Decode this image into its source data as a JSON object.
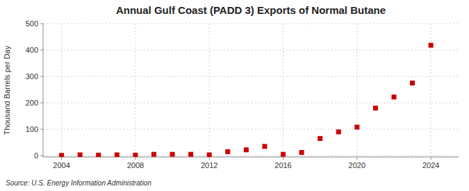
{
  "chart_data": {
    "type": "scatter",
    "title": "Annual Gulf Coast (PADD 3) Exports of Normal Butane",
    "ylabel": "Thousand Barrels per Day",
    "source": "Source: U.S. Energy Information Administration",
    "x": [
      2004,
      2005,
      2006,
      2007,
      2008,
      2009,
      2010,
      2011,
      2012,
      2013,
      2014,
      2015,
      2016,
      2017,
      2018,
      2019,
      2020,
      2021,
      2022,
      2023,
      2024
    ],
    "values": [
      1,
      3,
      2,
      3,
      2,
      5,
      5,
      5,
      3,
      15,
      22,
      35,
      5,
      12,
      65,
      90,
      108,
      180,
      222,
      275,
      418
    ],
    "color": "#cc0000",
    "marker": "square",
    "xlim": [
      2003.0,
      2025.5
    ],
    "ylim": [
      -5,
      500
    ],
    "xticks": [
      2004,
      2008,
      2012,
      2016,
      2020,
      2024
    ],
    "yticks": [
      0,
      100,
      200,
      300,
      400,
      500
    ],
    "grid": true
  }
}
